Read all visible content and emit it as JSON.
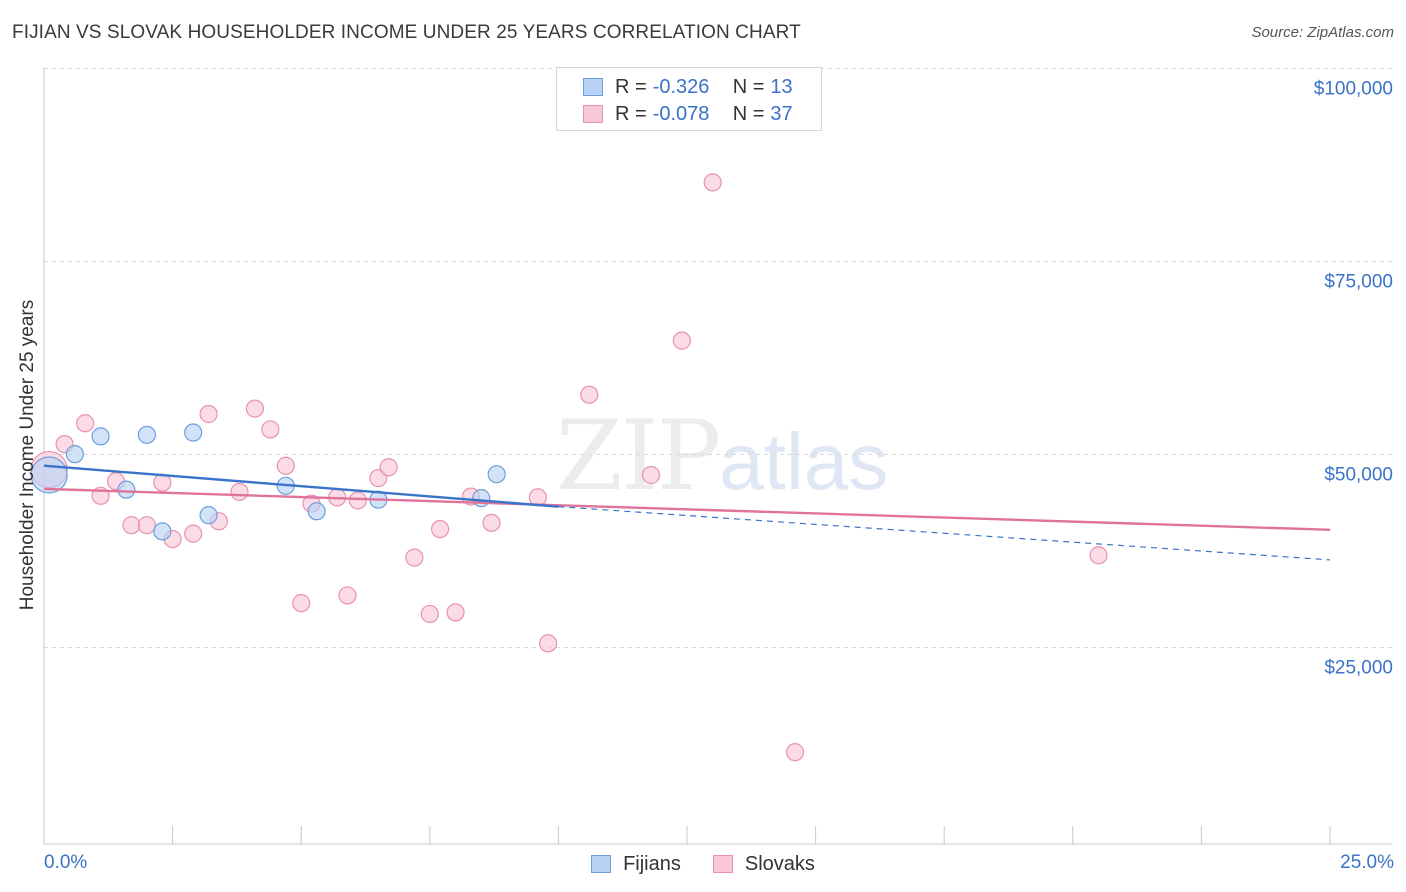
{
  "title": "FIJIAN VS SLOVAK HOUSEHOLDER INCOME UNDER 25 YEARS CORRELATION CHART",
  "source": "Source: ZipAtlas.com",
  "watermark": {
    "zip": "ZIP",
    "atlas": "atlas"
  },
  "legend_top": {
    "fijians": {
      "r_label": "R =",
      "r_value": "-0.326",
      "n_label": "N =",
      "n_value": "13"
    },
    "slovaks": {
      "r_label": "R =",
      "r_value": "-0.078",
      "n_label": "N =",
      "n_value": "37"
    }
  },
  "legend_bottom": {
    "fijians": "Fijians",
    "slovaks": "Slovaks"
  },
  "colors": {
    "fijian_fill": "#b9d3f6",
    "fijian_stroke": "#6f9edc",
    "fijian_line": "#3a74c9",
    "slovak_fill": "#f9c8d7",
    "slovak_stroke": "#e892ae",
    "slovak_line": "#e0739c",
    "tick_label": "#3a72c8",
    "grid": "#d8d8d8"
  },
  "chart_data": {
    "type": "scatter",
    "title": "FIJIAN VS SLOVAK HOUSEHOLDER INCOME UNDER 25 YEARS CORRELATION CHART",
    "xlabel": "",
    "ylabel": "Householder Income Under 25 years",
    "xlim": [
      0,
      25
    ],
    "ylim": [
      2000,
      102000
    ],
    "x_tick_labels": [
      "0.0%",
      "25.0%"
    ],
    "y_ticks": [
      25000,
      50000,
      75000,
      100000
    ],
    "y_tick_labels": [
      "$25,000",
      "$50,000",
      "$75,000",
      "$100,000"
    ],
    "series": [
      {
        "name": "Fijians",
        "points": [
          [
            0.1,
            49800
          ],
          [
            1.1,
            54800
          ],
          [
            0.6,
            52500
          ],
          [
            1.6,
            47900
          ],
          [
            2.0,
            55000
          ],
          [
            2.3,
            42500
          ],
          [
            2.9,
            55300
          ],
          [
            3.2,
            44600
          ],
          [
            4.7,
            48400
          ],
          [
            5.3,
            45100
          ],
          [
            6.5,
            46600
          ],
          [
            8.5,
            46800
          ],
          [
            8.8,
            49900
          ]
        ],
        "trend": {
          "x": [
            0,
            10
          ],
          "y": [
            51000,
            45700
          ],
          "dashed_to": [
            25,
            38800
          ]
        }
      },
      {
        "name": "Slovaks",
        "points": [
          [
            0.1,
            50500
          ],
          [
            0.4,
            53800
          ],
          [
            0.8,
            56500
          ],
          [
            1.1,
            47100
          ],
          [
            1.4,
            49000
          ],
          [
            1.7,
            43300
          ],
          [
            2.0,
            43300
          ],
          [
            2.3,
            48800
          ],
          [
            2.5,
            41500
          ],
          [
            2.9,
            42200
          ],
          [
            3.2,
            57700
          ],
          [
            3.4,
            43800
          ],
          [
            3.8,
            47600
          ],
          [
            4.1,
            58400
          ],
          [
            4.4,
            55700
          ],
          [
            4.7,
            51000
          ],
          [
            5.0,
            33200
          ],
          [
            5.2,
            46100
          ],
          [
            5.7,
            46900
          ],
          [
            5.9,
            34200
          ],
          [
            6.1,
            46500
          ],
          [
            6.5,
            49400
          ],
          [
            6.7,
            50800
          ],
          [
            7.2,
            39100
          ],
          [
            7.5,
            31800
          ],
          [
            7.7,
            42800
          ],
          [
            8.0,
            32000
          ],
          [
            8.3,
            47000
          ],
          [
            8.7,
            43600
          ],
          [
            9.6,
            46900
          ],
          [
            9.8,
            28000
          ],
          [
            10.6,
            60200
          ],
          [
            11.8,
            49800
          ],
          [
            12.4,
            67200
          ],
          [
            13.0,
            87700
          ],
          [
            14.6,
            13900
          ],
          [
            20.5,
            39400
          ]
        ],
        "trend": {
          "x": [
            0,
            25
          ],
          "y": [
            48000,
            42700
          ]
        }
      }
    ]
  }
}
